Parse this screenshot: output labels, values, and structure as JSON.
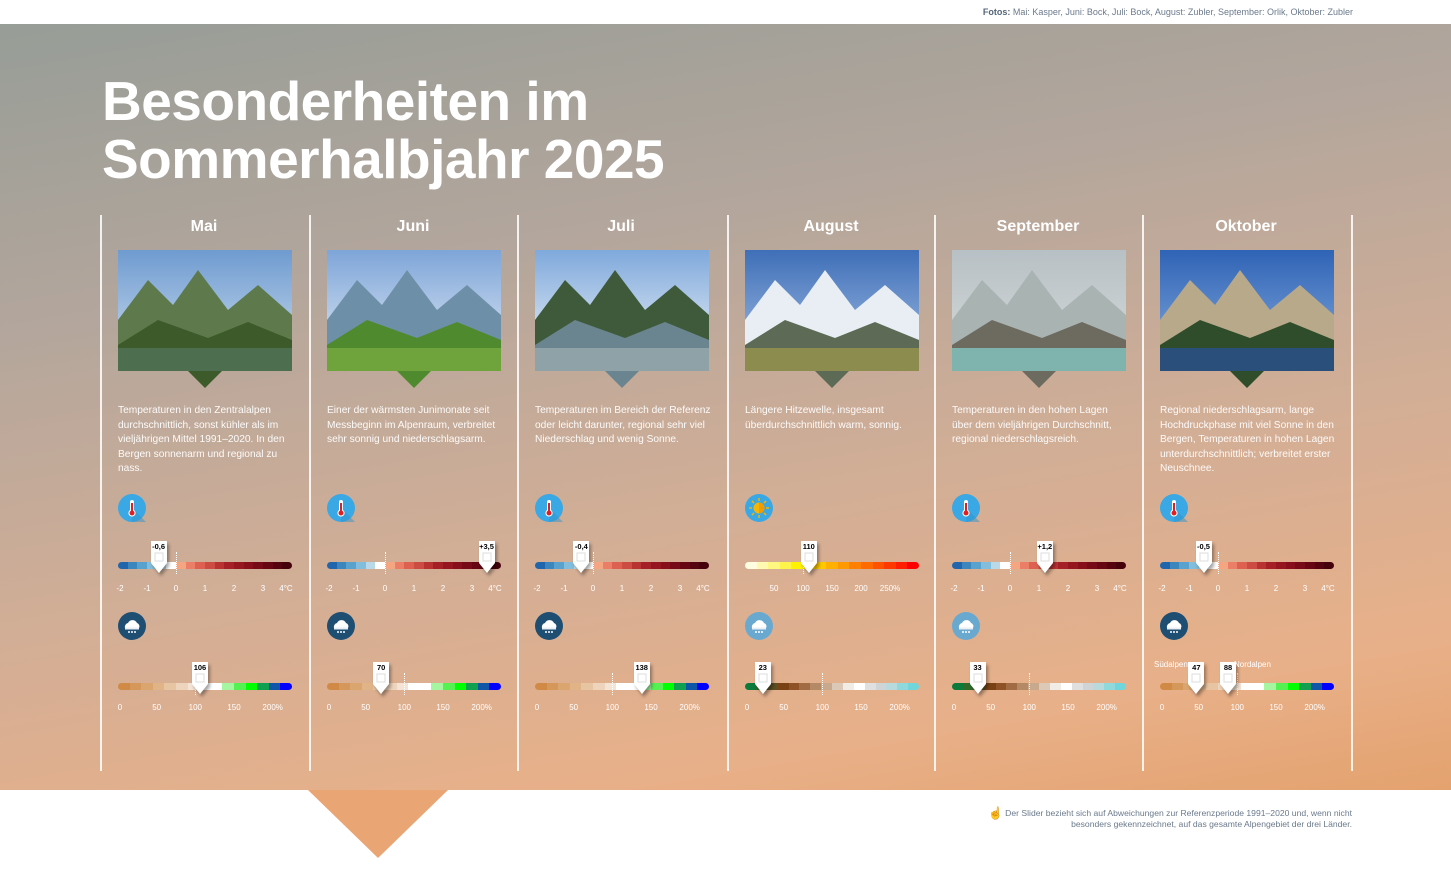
{
  "credits": {
    "label": "Fotos:",
    "text": "Mai: Kasper, Juni: Bock, Juli: Bock, August: Zubler, September: Orlik, Oktober: Zubler"
  },
  "title": {
    "line1": "Besonderheiten im",
    "line2": "Sommerhalbjahr 2025"
  },
  "footer": {
    "icon": "info-hand-icon",
    "text": "Der Slider bezieht sich auf Abweichungen zur Referenzperiode 1991–2020 und, wenn nicht besonders gekennzeichnet, auf das gesamte Alpengebiet der drei Länder."
  },
  "scales": {
    "temperature": {
      "range": [
        -2,
        4
      ],
      "reference": 0,
      "ticks": [
        "-2",
        "-1",
        "0",
        "1",
        "2",
        "3",
        "4°C"
      ]
    },
    "sunshine": {
      "range": [
        0,
        300
      ],
      "reference": 100,
      "ticks": [
        "50",
        "100",
        "150",
        "200",
        "250%"
      ]
    },
    "precipitation": {
      "range": [
        0,
        225
      ],
      "reference": 100,
      "ticks": [
        "0",
        "50",
        "100",
        "150",
        "200%"
      ]
    }
  },
  "months": [
    {
      "name": "Mai",
      "photo": "Bergsee mit Felswänden",
      "text": "Temperaturen in den Zentralalpen durchschnittlich, sonst kühler als im vieljährigen Mittel 1991–2020. In den Bergen sonnenarm und regional zu nass.",
      "top": {
        "kind": "temperature",
        "icon": "thermometer-icon",
        "markers": [
          {
            "value": -0.6,
            "label": "-0,6"
          }
        ]
      },
      "bottom": {
        "kind": "precipitation",
        "palette": "wet",
        "icon": "rain-cloud-icon",
        "markers": [
          {
            "value": 106,
            "label": "106"
          }
        ]
      }
    },
    {
      "name": "Juni",
      "photo": "Alpwiese mit Kühen",
      "text": "Einer der wärmsten Junimonate seit Messbeginn im Alpenraum, verbreitet sehr sonnig und niederschlagsarm.",
      "top": {
        "kind": "temperature",
        "icon": "thermometer-icon",
        "markers": [
          {
            "value": 3.5,
            "label": "+3,5"
          }
        ]
      },
      "bottom": {
        "kind": "precipitation",
        "palette": "wet",
        "icon": "rain-cloud-icon",
        "markers": [
          {
            "value": 70,
            "label": "70"
          }
        ]
      }
    },
    {
      "name": "Juli",
      "photo": "Bergsee mit Wolken",
      "text": "Temperaturen im Bereich der Referenz oder leicht darunter, regional sehr viel Niederschlag und wenig Sonne.",
      "top": {
        "kind": "temperature",
        "icon": "thermometer-icon",
        "markers": [
          {
            "value": -0.4,
            "label": "-0,4"
          }
        ]
      },
      "bottom": {
        "kind": "precipitation",
        "palette": "wet",
        "icon": "rain-cloud-icon",
        "markers": [
          {
            "value": 138,
            "label": "138"
          }
        ]
      }
    },
    {
      "name": "August",
      "photo": "Gletscherlandschaft",
      "text": "Längere Hitzewelle, insgesamt überdurchschnittlich warm, sonnig.",
      "top": {
        "kind": "sunshine",
        "icon": "sun-icon",
        "markers": [
          {
            "value": 110,
            "label": "110"
          }
        ]
      },
      "bottom": {
        "kind": "precipitation",
        "palette": "dry",
        "icon": "light-rain-cloud-icon",
        "markers": [
          {
            "value": 23,
            "label": "23"
          }
        ]
      }
    },
    {
      "name": "September",
      "photo": "Gletschersee im Nebel",
      "text": "Temperaturen in den hohen Lagen über dem vieljährigen Durchschnitt, regional niederschlagsreich.",
      "top": {
        "kind": "temperature",
        "icon": "thermometer-icon",
        "markers": [
          {
            "value": 1.2,
            "label": "+1,2"
          }
        ]
      },
      "bottom": {
        "kind": "precipitation",
        "palette": "dry",
        "icon": "light-rain-cloud-icon",
        "markers": [
          {
            "value": 33,
            "label": "33"
          }
        ]
      }
    },
    {
      "name": "Oktober",
      "photo": "Herbstlicher Bergsee",
      "text": "Regional niederschlagsarm, lange Hochdruckphase mit viel Sonne in den Bergen, Temperaturen in hohen Lagen unterdurchschnittlich; verbreitet erster Neuschnee.",
      "top": {
        "kind": "temperature",
        "icon": "thermometer-icon",
        "markers": [
          {
            "value": -0.5,
            "label": "-0,5"
          }
        ]
      },
      "bottom": {
        "kind": "precipitation",
        "palette": "wet",
        "icon": "rain-cloud-icon",
        "markers": [
          {
            "value": 47,
            "label": "47"
          },
          {
            "value": 88,
            "label": "88"
          }
        ],
        "region_labels": [
          "Südalpen",
          "Nordalpen"
        ]
      }
    }
  ],
  "colors": {
    "background_top": "#979d97",
    "background_bottom": "#e4a26e",
    "icon_circle": "#3aa8e4",
    "icon_circle_dark": "#1f4e73",
    "icon_circle_light": "#6aa9cf"
  }
}
